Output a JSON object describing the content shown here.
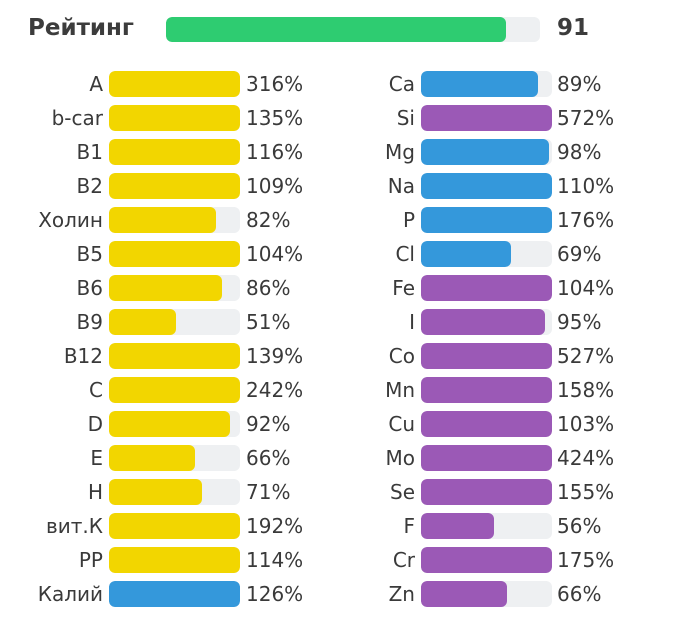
{
  "rating": {
    "label": "Рейтинг",
    "value": "91",
    "fill_fraction": 0.91,
    "color": "#2ecc71"
  },
  "colors": {
    "yellow": "#f2d600",
    "blue": "#3498db",
    "purple": "#9b59b6",
    "track": "#eef0f2"
  },
  "chart_data": {
    "type": "bar",
    "bar_scale_max_percent": 100,
    "series": [
      {
        "items": [
          {
            "label": "A",
            "value": "316%",
            "percent": 316,
            "color": "yellow"
          },
          {
            "label": "b-car",
            "value": "135%",
            "percent": 135,
            "color": "yellow"
          },
          {
            "label": "B1",
            "value": "116%",
            "percent": 116,
            "color": "yellow"
          },
          {
            "label": "B2",
            "value": "109%",
            "percent": 109,
            "color": "yellow"
          },
          {
            "label": "Холин",
            "value": "82%",
            "percent": 82,
            "color": "yellow"
          },
          {
            "label": "B5",
            "value": "104%",
            "percent": 104,
            "color": "yellow"
          },
          {
            "label": "B6",
            "value": "86%",
            "percent": 86,
            "color": "yellow"
          },
          {
            "label": "B9",
            "value": "51%",
            "percent": 51,
            "color": "yellow"
          },
          {
            "label": "B12",
            "value": "139%",
            "percent": 139,
            "color": "yellow"
          },
          {
            "label": "C",
            "value": "242%",
            "percent": 242,
            "color": "yellow"
          },
          {
            "label": "D",
            "value": "92%",
            "percent": 92,
            "color": "yellow"
          },
          {
            "label": "E",
            "value": "66%",
            "percent": 66,
            "color": "yellow"
          },
          {
            "label": "H",
            "value": "71%",
            "percent": 71,
            "color": "yellow"
          },
          {
            "label": "вит.К",
            "value": "192%",
            "percent": 192,
            "color": "yellow"
          },
          {
            "label": "PP",
            "value": "114%",
            "percent": 114,
            "color": "yellow"
          },
          {
            "label": "Калий",
            "value": "126%",
            "percent": 126,
            "color": "blue"
          }
        ]
      },
      {
        "items": [
          {
            "label": "Ca",
            "value": "89%",
            "percent": 89,
            "color": "blue"
          },
          {
            "label": "Si",
            "value": "572%",
            "percent": 572,
            "color": "purple"
          },
          {
            "label": "Mg",
            "value": "98%",
            "percent": 98,
            "color": "blue"
          },
          {
            "label": "Na",
            "value": "110%",
            "percent": 110,
            "color": "blue"
          },
          {
            "label": "P",
            "value": "176%",
            "percent": 176,
            "color": "blue"
          },
          {
            "label": "Cl",
            "value": "69%",
            "percent": 69,
            "color": "blue"
          },
          {
            "label": "Fe",
            "value": "104%",
            "percent": 104,
            "color": "purple"
          },
          {
            "label": "I",
            "value": "95%",
            "percent": 95,
            "color": "purple"
          },
          {
            "label": "Co",
            "value": "527%",
            "percent": 527,
            "color": "purple"
          },
          {
            "label": "Mn",
            "value": "158%",
            "percent": 158,
            "color": "purple"
          },
          {
            "label": "Cu",
            "value": "103%",
            "percent": 103,
            "color": "purple"
          },
          {
            "label": "Mo",
            "value": "424%",
            "percent": 424,
            "color": "purple"
          },
          {
            "label": "Se",
            "value": "155%",
            "percent": 155,
            "color": "purple"
          },
          {
            "label": "F",
            "value": "56%",
            "percent": 56,
            "color": "purple"
          },
          {
            "label": "Cr",
            "value": "175%",
            "percent": 175,
            "color": "purple"
          },
          {
            "label": "Zn",
            "value": "66%",
            "percent": 66,
            "color": "purple"
          }
        ]
      }
    ]
  }
}
